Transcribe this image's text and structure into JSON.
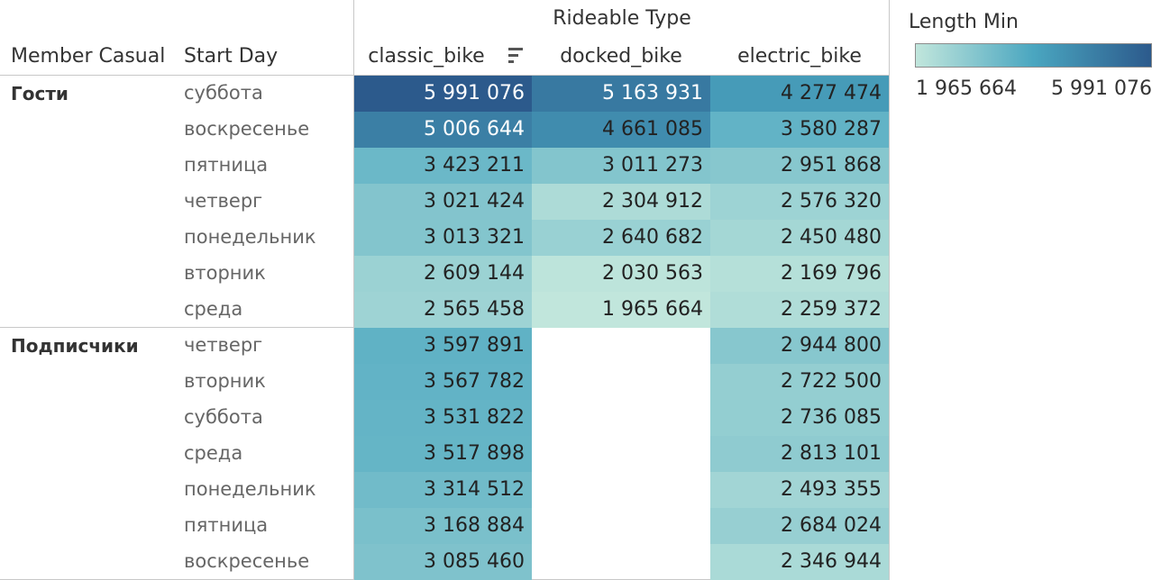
{
  "header": {
    "group_title": "Rideable Type",
    "row_dim1": "Member Casual",
    "row_dim2": "Start Day",
    "columns": [
      "classic_bike",
      "docked_bike",
      "electric_bike"
    ]
  },
  "legend": {
    "title": "Length Min",
    "min_label": "1 965 664",
    "max_label": "5 991 076",
    "color_low": "#c1e6dc",
    "color_mid": "#4aa6c0",
    "color_high": "#2c5a8c"
  },
  "chart_data": {
    "type": "heatmap",
    "title": "",
    "column_dimension": "Rideable Type",
    "measure": "Length Min",
    "color_range": [
      1965664,
      5991076
    ],
    "groups": [
      {
        "name": "Гости",
        "rows": [
          {
            "day": "суббота",
            "values": [
              5991076,
              5163931,
              4277474
            ],
            "labels": [
              "5 991 076",
              "5 163 931",
              "4 277 474"
            ]
          },
          {
            "day": "воскресенье",
            "values": [
              5006644,
              4661085,
              3580287
            ],
            "labels": [
              "5 006 644",
              "4 661 085",
              "3 580 287"
            ]
          },
          {
            "day": "пятница",
            "values": [
              3423211,
              3011273,
              2951868
            ],
            "labels": [
              "3 423 211",
              "3 011 273",
              "2 951 868"
            ]
          },
          {
            "day": "четверг",
            "values": [
              3021424,
              2304912,
              2576320
            ],
            "labels": [
              "3 021 424",
              "2 304 912",
              "2 576 320"
            ]
          },
          {
            "day": "понедельник",
            "values": [
              3013321,
              2640682,
              2450480
            ],
            "labels": [
              "3 013 321",
              "2 640 682",
              "2 450 480"
            ]
          },
          {
            "day": "вторник",
            "values": [
              2609144,
              2030563,
              2169796
            ],
            "labels": [
              "2 609 144",
              "2 030 563",
              "2 169 796"
            ]
          },
          {
            "day": "среда",
            "values": [
              2565458,
              1965664,
              2259372
            ],
            "labels": [
              "2 565 458",
              "1 965 664",
              "2 259 372"
            ]
          }
        ]
      },
      {
        "name": "Подписчики",
        "rows": [
          {
            "day": "четверг",
            "values": [
              3597891,
              null,
              2944800
            ],
            "labels": [
              "3 597 891",
              "",
              "2 944 800"
            ]
          },
          {
            "day": "вторник",
            "values": [
              3567782,
              null,
              2722500
            ],
            "labels": [
              "3 567 782",
              "",
              "2 722 500"
            ]
          },
          {
            "day": "суббота",
            "values": [
              3531822,
              null,
              2736085
            ],
            "labels": [
              "3 531 822",
              "",
              "2 736 085"
            ]
          },
          {
            "day": "среда",
            "values": [
              3517898,
              null,
              2813101
            ],
            "labels": [
              "3 517 898",
              "",
              "2 813 101"
            ]
          },
          {
            "day": "понедельник",
            "values": [
              3314512,
              null,
              2493355
            ],
            "labels": [
              "3 314 512",
              "",
              "2 493 355"
            ]
          },
          {
            "day": "пятница",
            "values": [
              3168884,
              null,
              2684024
            ],
            "labels": [
              "3 168 884",
              "",
              "2 684 024"
            ]
          },
          {
            "day": "воскресенье",
            "values": [
              3085460,
              null,
              2346944
            ],
            "labels": [
              "3 085 460",
              "",
              "2 346 944"
            ]
          }
        ]
      }
    ]
  }
}
